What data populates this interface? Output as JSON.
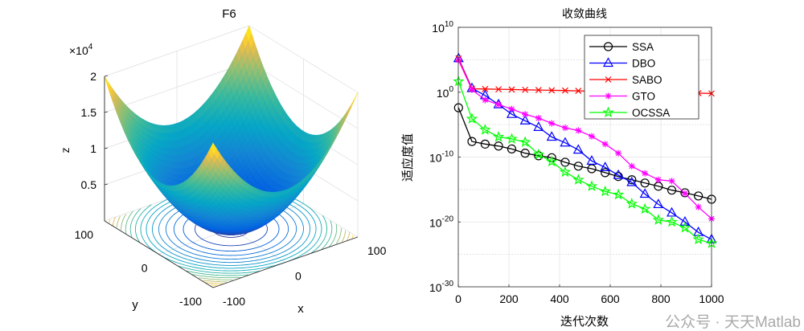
{
  "chart_data": [
    {
      "type": "surface3d",
      "title": "F6",
      "function": "z = x^2 + y^2",
      "xlabel": "x",
      "ylabel": "y",
      "zlabel": "z",
      "xlim": [
        -100,
        100
      ],
      "ylim": [
        -100,
        100
      ],
      "zlim": [
        0,
        20000
      ],
      "z_exponent_label": "×10",
      "z_exponent": "4",
      "xticks": [
        {
          "v": -100,
          "label": "-100"
        },
        {
          "v": 0,
          "label": "0"
        },
        {
          "v": 100,
          "label": "100"
        }
      ],
      "yticks": [
        {
          "v": -100,
          "label": "-100"
        },
        {
          "v": 0,
          "label": "0"
        },
        {
          "v": 100,
          "label": "100"
        }
      ],
      "zticks": [
        {
          "v": 5000,
          "label": "0.5"
        },
        {
          "v": 10000,
          "label": "1"
        },
        {
          "v": 15000,
          "label": "1.5"
        },
        {
          "v": 20000,
          "label": "2"
        }
      ],
      "contour_levels": [
        400,
        1600,
        2800,
        4000,
        5200,
        6400,
        7600,
        8800,
        10000,
        11200,
        12400,
        13600,
        14800,
        16000,
        17200,
        18400
      ],
      "colormap": "parula",
      "grid": true
    },
    {
      "type": "line",
      "title": "收敛曲线",
      "xlabel": "迭代次数",
      "ylabel": "适应度值",
      "yscale": "log",
      "xlim": [
        0,
        1000
      ],
      "ylim_log10": [
        -30,
        10
      ],
      "grid": true,
      "legend_position": "top-right",
      "xticks": [
        {
          "v": 0,
          "label": "0"
        },
        {
          "v": 200,
          "label": "200"
        },
        {
          "v": 400,
          "label": "400"
        },
        {
          "v": 600,
          "label": "600"
        },
        {
          "v": 800,
          "label": "800"
        },
        {
          "v": 1000,
          "label": "1000"
        }
      ],
      "yticks": [
        {
          "exp": 10,
          "base": "10",
          "label": "10"
        },
        {
          "exp": 0,
          "base": "10",
          "label": "0"
        },
        {
          "exp": -10,
          "base": "10",
          "label": "-10"
        },
        {
          "exp": -20,
          "base": "10",
          "label": "-20"
        },
        {
          "exp": -30,
          "base": "10",
          "label": "-30"
        }
      ],
      "x": [
        1,
        54,
        106,
        159,
        211,
        264,
        317,
        369,
        422,
        474,
        527,
        580,
        632,
        685,
        737,
        790,
        843,
        895,
        948,
        1000
      ],
      "series": [
        {
          "name": "SSA",
          "color": "#000000",
          "marker": "circle",
          "log10_values": [
            -2.4,
            -7.6,
            -8.0,
            -8.3,
            -8.75,
            -9.4,
            -9.8,
            -10.1,
            -10.8,
            -11.4,
            -11.8,
            -12.4,
            -13.0,
            -13.5,
            -14.0,
            -14.5,
            -15.1,
            -15.5,
            -16.0,
            -16.5
          ]
        },
        {
          "name": "DBO",
          "color": "#0000ff",
          "marker": "triangle",
          "log10_values": [
            5.2,
            0.6,
            -0.5,
            -1.9,
            -3.4,
            -4.4,
            -5.4,
            -6.9,
            -7.8,
            -8.9,
            -10.6,
            -11.6,
            -12.8,
            -13.9,
            -15.7,
            -17.3,
            -18.6,
            -20.0,
            -21.6,
            -22.7
          ]
        },
        {
          "name": "SABO",
          "color": "#ff0000",
          "marker": "x",
          "log10_values": [
            5.2,
            0.53,
            0.49,
            0.45,
            0.41,
            0.37,
            0.33,
            0.29,
            0.25,
            0.21,
            0.17,
            0.13,
            0.09,
            0.05,
            0.01,
            -0.03,
            -0.07,
            -0.11,
            -0.15,
            -0.2
          ]
        },
        {
          "name": "GTO",
          "color": "#ff00ff",
          "marker": "asterisk",
          "log10_values": [
            4.95,
            0.4,
            -1.2,
            -1.9,
            -2.6,
            -3.4,
            -4.0,
            -4.8,
            -5.5,
            -5.9,
            -6.8,
            -8.0,
            -9.4,
            -11.4,
            -12.5,
            -13.5,
            -13.7,
            -15.6,
            -17.7,
            -19.5
          ]
        },
        {
          "name": "OCSSA",
          "color": "#00ff00",
          "marker": "star",
          "log10_values": [
            1.65,
            -4.1,
            -5.8,
            -6.9,
            -7.2,
            -7.7,
            -9.6,
            -10.7,
            -12.3,
            -13.5,
            -14.5,
            -15.3,
            -15.8,
            -17.2,
            -18.0,
            -19.7,
            -20.0,
            -20.9,
            -22.7,
            -23.3
          ]
        }
      ]
    }
  ],
  "watermark": "公众号 · 天天Matlab"
}
